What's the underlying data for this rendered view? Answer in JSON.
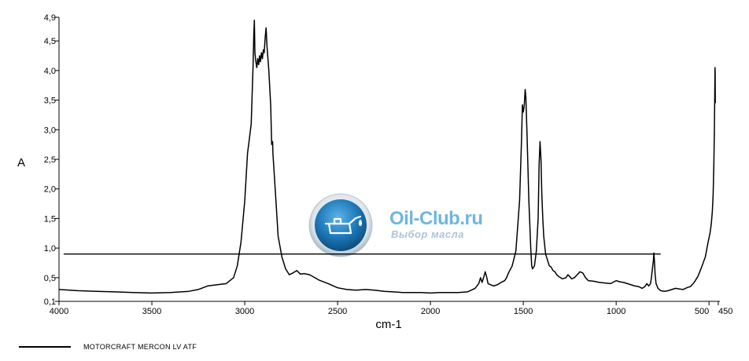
{
  "chart_data": {
    "type": "line",
    "xlabel": "cm-1",
    "ylabel": "A",
    "xlim": [
      4000,
      450
    ],
    "ylim": [
      0.1,
      4.9
    ],
    "x_ticks": [
      {
        "value": 4000,
        "label": "4000"
      },
      {
        "value": 3500,
        "label": "3500"
      },
      {
        "value": 3000,
        "label": "3000"
      },
      {
        "value": 2500,
        "label": "2500"
      },
      {
        "value": 2000,
        "label": "2000"
      },
      {
        "value": 1500,
        "label": "1500"
      },
      {
        "value": 1000,
        "label": "1000"
      },
      {
        "value": 500,
        "label": "500"
      },
      {
        "value": 450,
        "label": "450"
      }
    ],
    "y_ticks": [
      {
        "value": 0.1,
        "label": "0,1"
      },
      {
        "value": 0.5,
        "label": "0,5"
      },
      {
        "value": 1.0,
        "label": "1,0"
      },
      {
        "value": 1.5,
        "label": "1,5"
      },
      {
        "value": 2.0,
        "label": "2,0"
      },
      {
        "value": 2.5,
        "label": "2,5"
      },
      {
        "value": 3.0,
        "label": "3,0"
      },
      {
        "value": 3.5,
        "label": "3,5"
      },
      {
        "value": 4.0,
        "label": "4,0"
      },
      {
        "value": 4.5,
        "label": "4,5"
      },
      {
        "value": 4.9,
        "label": "4,9"
      }
    ],
    "legend_position": "bottom-left",
    "grid": false,
    "series": [
      {
        "name": "MOTORCRAFT MERCON LV ATF",
        "color": "#000000",
        "points": [
          [
            4000,
            0.3
          ],
          [
            3900,
            0.28
          ],
          [
            3800,
            0.27
          ],
          [
            3700,
            0.26
          ],
          [
            3600,
            0.25
          ],
          [
            3500,
            0.24
          ],
          [
            3400,
            0.25
          ],
          [
            3300,
            0.27
          ],
          [
            3250,
            0.3
          ],
          [
            3200,
            0.36
          ],
          [
            3150,
            0.38
          ],
          [
            3100,
            0.4
          ],
          [
            3060,
            0.5
          ],
          [
            3040,
            0.7
          ],
          [
            3020,
            1.1
          ],
          [
            3000,
            1.8
          ],
          [
            2985,
            2.6
          ],
          [
            2975,
            2.85
          ],
          [
            2965,
            3.1
          ],
          [
            2960,
            3.6
          ],
          [
            2955,
            4.1
          ],
          [
            2951,
            4.62
          ],
          [
            2948,
            4.85
          ],
          [
            2945,
            4.3
          ],
          [
            2940,
            4.15
          ],
          [
            2935,
            4.05
          ],
          [
            2930,
            4.2
          ],
          [
            2925,
            4.1
          ],
          [
            2920,
            4.25
          ],
          [
            2915,
            4.15
          ],
          [
            2910,
            4.3
          ],
          [
            2905,
            4.2
          ],
          [
            2900,
            4.35
          ],
          [
            2895,
            4.3
          ],
          [
            2890,
            4.55
          ],
          [
            2885,
            4.72
          ],
          [
            2880,
            4.4
          ],
          [
            2870,
            4.0
          ],
          [
            2860,
            3.4
          ],
          [
            2855,
            2.75
          ],
          [
            2850,
            2.8
          ],
          [
            2848,
            2.6
          ],
          [
            2840,
            2.2
          ],
          [
            2830,
            1.7
          ],
          [
            2820,
            1.2
          ],
          [
            2800,
            0.85
          ],
          [
            2780,
            0.65
          ],
          [
            2760,
            0.55
          ],
          [
            2740,
            0.58
          ],
          [
            2720,
            0.62
          ],
          [
            2700,
            0.56
          ],
          [
            2680,
            0.57
          ],
          [
            2650,
            0.55
          ],
          [
            2600,
            0.46
          ],
          [
            2550,
            0.4
          ],
          [
            2500,
            0.33
          ],
          [
            2450,
            0.3
          ],
          [
            2400,
            0.29
          ],
          [
            2350,
            0.3
          ],
          [
            2300,
            0.29
          ],
          [
            2250,
            0.27
          ],
          [
            2200,
            0.26
          ],
          [
            2150,
            0.25
          ],
          [
            2100,
            0.25
          ],
          [
            2050,
            0.25
          ],
          [
            2000,
            0.24
          ],
          [
            1950,
            0.25
          ],
          [
            1900,
            0.25
          ],
          [
            1850,
            0.25
          ],
          [
            1800,
            0.26
          ],
          [
            1760,
            0.32
          ],
          [
            1740,
            0.4
          ],
          [
            1730,
            0.5
          ],
          [
            1722,
            0.42
          ],
          [
            1712,
            0.52
          ],
          [
            1705,
            0.6
          ],
          [
            1698,
            0.52
          ],
          [
            1690,
            0.4
          ],
          [
            1660,
            0.36
          ],
          [
            1640,
            0.38
          ],
          [
            1620,
            0.42
          ],
          [
            1600,
            0.45
          ],
          [
            1590,
            0.5
          ],
          [
            1580,
            0.58
          ],
          [
            1560,
            0.7
          ],
          [
            1540,
            0.95
          ],
          [
            1520,
            1.8
          ],
          [
            1510,
            2.8
          ],
          [
            1505,
            3.42
          ],
          [
            1500,
            3.3
          ],
          [
            1495,
            3.4
          ],
          [
            1490,
            3.68
          ],
          [
            1486,
            3.55
          ],
          [
            1480,
            2.9
          ],
          [
            1470,
            1.8
          ],
          [
            1460,
            1.0
          ],
          [
            1455,
            0.7
          ],
          [
            1450,
            0.65
          ],
          [
            1440,
            0.7
          ],
          [
            1430,
            0.95
          ],
          [
            1420,
            1.5
          ],
          [
            1415,
            2.4
          ],
          [
            1410,
            2.8
          ],
          [
            1405,
            2.5
          ],
          [
            1400,
            1.9
          ],
          [
            1395,
            1.5
          ],
          [
            1390,
            1.2
          ],
          [
            1380,
            0.9
          ],
          [
            1370,
            0.8
          ],
          [
            1360,
            0.7
          ],
          [
            1350,
            0.68
          ],
          [
            1340,
            0.62
          ],
          [
            1330,
            0.6
          ],
          [
            1320,
            0.55
          ],
          [
            1310,
            0.52
          ],
          [
            1290,
            0.48
          ],
          [
            1270,
            0.5
          ],
          [
            1260,
            0.55
          ],
          [
            1250,
            0.52
          ],
          [
            1240,
            0.48
          ],
          [
            1225,
            0.5
          ],
          [
            1210,
            0.55
          ],
          [
            1195,
            0.6
          ],
          [
            1180,
            0.58
          ],
          [
            1165,
            0.5
          ],
          [
            1150,
            0.45
          ],
          [
            1120,
            0.44
          ],
          [
            1090,
            0.42
          ],
          [
            1060,
            0.41
          ],
          [
            1030,
            0.4
          ],
          [
            1000,
            0.45
          ],
          [
            980,
            0.43
          ],
          [
            960,
            0.42
          ],
          [
            940,
            0.4
          ],
          [
            920,
            0.38
          ],
          [
            900,
            0.36
          ],
          [
            880,
            0.35
          ],
          [
            860,
            0.32
          ],
          [
            845,
            0.35
          ],
          [
            835,
            0.4
          ],
          [
            825,
            0.36
          ],
          [
            815,
            0.4
          ],
          [
            810,
            0.5
          ],
          [
            805,
            0.65
          ],
          [
            800,
            0.78
          ],
          [
            797,
            0.92
          ],
          [
            794,
            0.78
          ],
          [
            790,
            0.55
          ],
          [
            785,
            0.4
          ],
          [
            775,
            0.32
          ],
          [
            760,
            0.28
          ],
          [
            740,
            0.27
          ],
          [
            720,
            0.28
          ],
          [
            700,
            0.3
          ],
          [
            680,
            0.32
          ],
          [
            660,
            0.31
          ],
          [
            640,
            0.3
          ],
          [
            620,
            0.33
          ],
          [
            600,
            0.35
          ],
          [
            580,
            0.42
          ],
          [
            560,
            0.52
          ],
          [
            540,
            0.68
          ],
          [
            520,
            0.85
          ],
          [
            505,
            1.1
          ],
          [
            495,
            1.25
          ],
          [
            488,
            1.4
          ],
          [
            482,
            1.62
          ],
          [
            478,
            1.9
          ],
          [
            474,
            2.4
          ],
          [
            471,
            3.0
          ],
          [
            469,
            3.6
          ],
          [
            468,
            4.05
          ],
          [
            467,
            3.95
          ],
          [
            466,
            3.45
          ]
        ]
      }
    ],
    "reference_line": {
      "value": 0.9,
      "x_from": 3975,
      "x_to": 760
    }
  },
  "legend": {
    "label": "MOTORCRAFT MERCON LV ATF"
  },
  "watermark": {
    "title": "Oil-Club.ru",
    "subtitle": "Выбор масла",
    "icon": "oil-can-icon",
    "accent": "#1c78b8"
  }
}
